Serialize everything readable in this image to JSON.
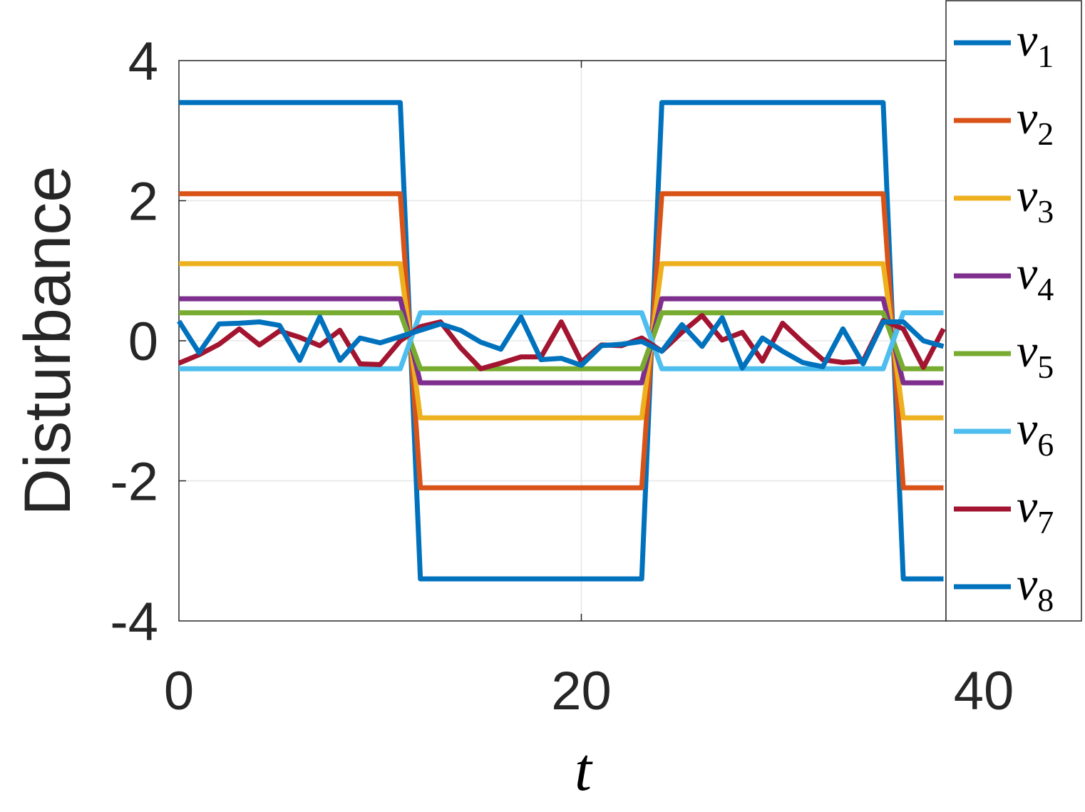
{
  "chart_data": {
    "type": "line",
    "title": "",
    "xlabel": "t",
    "ylabel": "Disturbance",
    "xlim": [
      0,
      38
    ],
    "ylim": [
      -4,
      4
    ],
    "xticks": [
      0,
      20,
      40
    ],
    "xtick_labels": [
      "0",
      "20",
      "40"
    ],
    "yticks": [
      -4,
      -2,
      0,
      2,
      4
    ],
    "ytick_labels": [
      "-4",
      "-2",
      "0",
      "2",
      "4"
    ],
    "grid": true,
    "legend_position": "right, outside",
    "x": [
      0,
      1,
      2,
      3,
      4,
      5,
      6,
      7,
      8,
      9,
      10,
      11,
      12,
      13,
      14,
      15,
      16,
      17,
      18,
      19,
      20,
      21,
      22,
      23,
      24,
      25,
      26,
      27,
      28,
      29,
      30,
      31,
      32,
      33,
      34,
      35,
      36,
      37,
      38
    ],
    "series": [
      {
        "name": "v1",
        "color": "#0072BD",
        "values": [
          3.4,
          3.4,
          3.4,
          3.4,
          3.4,
          3.4,
          3.4,
          3.4,
          3.4,
          3.4,
          3.4,
          3.4,
          -3.4,
          -3.4,
          -3.4,
          -3.4,
          -3.4,
          -3.4,
          -3.4,
          -3.4,
          -3.4,
          -3.4,
          -3.4,
          -3.4,
          3.4,
          3.4,
          3.4,
          3.4,
          3.4,
          3.4,
          3.4,
          3.4,
          3.4,
          3.4,
          3.4,
          3.4,
          -3.4,
          -3.4,
          -3.4
        ]
      },
      {
        "name": "v2",
        "color": "#D95319",
        "values": [
          2.1,
          2.1,
          2.1,
          2.1,
          2.1,
          2.1,
          2.1,
          2.1,
          2.1,
          2.1,
          2.1,
          2.1,
          -2.1,
          -2.1,
          -2.1,
          -2.1,
          -2.1,
          -2.1,
          -2.1,
          -2.1,
          -2.1,
          -2.1,
          -2.1,
          -2.1,
          2.1,
          2.1,
          2.1,
          2.1,
          2.1,
          2.1,
          2.1,
          2.1,
          2.1,
          2.1,
          2.1,
          2.1,
          -2.1,
          -2.1,
          -2.1
        ]
      },
      {
        "name": "v3",
        "color": "#EDB120",
        "values": [
          1.1,
          1.1,
          1.1,
          1.1,
          1.1,
          1.1,
          1.1,
          1.1,
          1.1,
          1.1,
          1.1,
          1.1,
          -1.1,
          -1.1,
          -1.1,
          -1.1,
          -1.1,
          -1.1,
          -1.1,
          -1.1,
          -1.1,
          -1.1,
          -1.1,
          -1.1,
          1.1,
          1.1,
          1.1,
          1.1,
          1.1,
          1.1,
          1.1,
          1.1,
          1.1,
          1.1,
          1.1,
          1.1,
          -1.1,
          -1.1,
          -1.1
        ]
      },
      {
        "name": "v4",
        "color": "#7E2F8E",
        "values": [
          0.6,
          0.6,
          0.6,
          0.6,
          0.6,
          0.6,
          0.6,
          0.6,
          0.6,
          0.6,
          0.6,
          0.6,
          -0.6,
          -0.6,
          -0.6,
          -0.6,
          -0.6,
          -0.6,
          -0.6,
          -0.6,
          -0.6,
          -0.6,
          -0.6,
          -0.6,
          0.6,
          0.6,
          0.6,
          0.6,
          0.6,
          0.6,
          0.6,
          0.6,
          0.6,
          0.6,
          0.6,
          0.6,
          -0.6,
          -0.6,
          -0.6
        ]
      },
      {
        "name": "v5",
        "color": "#77AC30",
        "values": [
          0.4,
          0.4,
          0.4,
          0.4,
          0.4,
          0.4,
          0.4,
          0.4,
          0.4,
          0.4,
          0.4,
          0.4,
          -0.4,
          -0.4,
          -0.4,
          -0.4,
          -0.4,
          -0.4,
          -0.4,
          -0.4,
          -0.4,
          -0.4,
          -0.4,
          -0.4,
          0.4,
          0.4,
          0.4,
          0.4,
          0.4,
          0.4,
          0.4,
          0.4,
          0.4,
          0.4,
          0.4,
          0.4,
          -0.4,
          -0.4,
          -0.4
        ]
      },
      {
        "name": "v6",
        "color": "#4DBEEE",
        "values": [
          -0.4,
          -0.4,
          -0.4,
          -0.4,
          -0.4,
          -0.4,
          -0.4,
          -0.4,
          -0.4,
          -0.4,
          -0.4,
          -0.4,
          0.4,
          0.4,
          0.4,
          0.4,
          0.4,
          0.4,
          0.4,
          0.4,
          0.4,
          0.4,
          0.4,
          0.4,
          -0.4,
          -0.4,
          -0.4,
          -0.4,
          -0.4,
          -0.4,
          -0.4,
          -0.4,
          -0.4,
          -0.4,
          -0.4,
          -0.4,
          0.4,
          0.4,
          0.4
        ]
      },
      {
        "name": "v7",
        "color": "#A2142F",
        "values": [
          -0.32,
          -0.2,
          -0.05,
          0.17,
          -0.06,
          0.14,
          0.05,
          -0.07,
          0.15,
          -0.33,
          -0.34,
          0.0,
          0.2,
          0.27,
          -0.1,
          -0.4,
          -0.32,
          -0.23,
          -0.23,
          0.27,
          -0.3,
          -0.06,
          -0.07,
          0.04,
          -0.15,
          0.12,
          0.36,
          0.01,
          0.12,
          -0.29,
          0.25,
          -0.02,
          -0.27,
          -0.31,
          -0.29,
          0.29,
          0.17,
          -0.38,
          0.17
        ]
      },
      {
        "name": "v8",
        "color": "#0072BD",
        "values": [
          0.28,
          -0.17,
          0.24,
          0.25,
          0.27,
          0.22,
          -0.28,
          0.34,
          -0.28,
          0.04,
          -0.03,
          0.06,
          0.15,
          0.24,
          0.15,
          -0.02,
          -0.12,
          0.34,
          -0.27,
          -0.25,
          -0.35,
          -0.07,
          -0.05,
          -0.01,
          -0.15,
          0.23,
          -0.08,
          0.33,
          -0.39,
          0.04,
          -0.15,
          -0.31,
          -0.37,
          0.17,
          -0.33,
          0.27,
          0.27,
          0.0,
          -0.08
        ]
      }
    ]
  }
}
